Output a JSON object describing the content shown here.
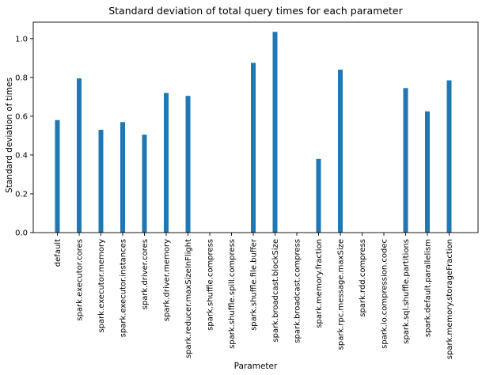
{
  "chart_data": {
    "type": "bar",
    "title": "Standard deviation of total query times for each parameter",
    "xlabel": "Parameter",
    "ylabel": "Standard deviation of times",
    "categories": [
      "default",
      "spark.executor.cores",
      "spark.executor.memory",
      "spark.executor.instances",
      "spark.driver.cores",
      "spark.driver.memory",
      "spark.reducer.maxSizeInFlight",
      "spark.shuffle.compress",
      "spark.shuffle.spill.compress",
      "spark.shuffle.file.buffer",
      "spark.broadcast.blockSize",
      "spark.broadcast.compress",
      "spark.memory.fraction",
      "spark.rpc.message.maxSize",
      "spark.rdd.compress",
      "spark.io.compression.codec",
      "spark.sql.shuffle.partitions",
      "spark.default.parallelism",
      "spark.memory.storageFraction"
    ],
    "values": [
      0.58,
      0.795,
      0.53,
      0.57,
      0.505,
      0.72,
      0.705,
      0,
      0,
      0.875,
      1.035,
      0,
      0.38,
      0.84,
      0,
      0,
      0.745,
      0.625,
      0.785
    ],
    "ylim": [
      0,
      1.085
    ],
    "yticks": [
      "0.0",
      "0.2",
      "0.4",
      "0.6",
      "0.8",
      "1.0"
    ],
    "bar_color": "#1f77b4",
    "grid": false,
    "legend": "none"
  }
}
